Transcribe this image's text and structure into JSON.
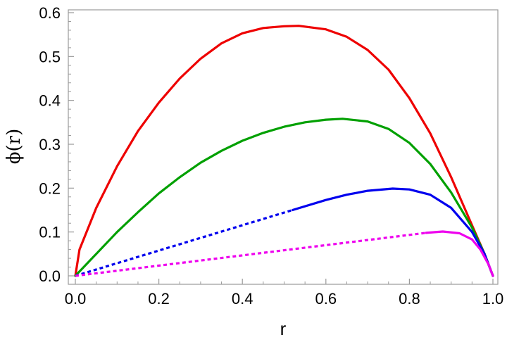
{
  "chart_data": {
    "type": "line",
    "title": "",
    "xlabel": "r",
    "ylabel": "ϕ(r)",
    "xlim": [
      0.0,
      1.0
    ],
    "ylim": [
      0.0,
      0.6
    ],
    "xticks": [
      "0.0",
      "0.2",
      "0.4",
      "0.6",
      "0.8",
      "1.0"
    ],
    "yticks": [
      "0.0",
      "0.1",
      "0.2",
      "0.3",
      "0.4",
      "0.5",
      "0.6"
    ],
    "grid": false,
    "legend": "none",
    "series": [
      {
        "color": "#ee0000",
        "style": "solid",
        "points": [
          [
            0.0,
            0.0
          ],
          [
            0.01,
            0.06
          ],
          [
            0.05,
            0.155
          ],
          [
            0.1,
            0.25
          ],
          [
            0.15,
            0.33
          ],
          [
            0.2,
            0.395
          ],
          [
            0.25,
            0.45
          ],
          [
            0.3,
            0.495
          ],
          [
            0.35,
            0.53
          ],
          [
            0.4,
            0.553
          ],
          [
            0.45,
            0.565
          ],
          [
            0.5,
            0.569
          ],
          [
            0.535,
            0.57
          ],
          [
            0.6,
            0.562
          ],
          [
            0.65,
            0.545
          ],
          [
            0.7,
            0.515
          ],
          [
            0.75,
            0.47
          ],
          [
            0.8,
            0.405
          ],
          [
            0.85,
            0.325
          ],
          [
            0.9,
            0.225
          ],
          [
            0.95,
            0.115
          ],
          [
            0.98,
            0.05
          ],
          [
            1.0,
            0.0
          ]
        ]
      },
      {
        "color": "#00a000",
        "style": "solid",
        "points": [
          [
            0.0,
            0.0
          ],
          [
            0.05,
            0.05
          ],
          [
            0.1,
            0.1
          ],
          [
            0.15,
            0.145
          ],
          [
            0.2,
            0.188
          ],
          [
            0.25,
            0.225
          ],
          [
            0.3,
            0.258
          ],
          [
            0.35,
            0.285
          ],
          [
            0.4,
            0.308
          ],
          [
            0.45,
            0.326
          ],
          [
            0.5,
            0.34
          ],
          [
            0.55,
            0.35
          ],
          [
            0.6,
            0.356
          ],
          [
            0.64,
            0.358
          ],
          [
            0.7,
            0.352
          ],
          [
            0.75,
            0.335
          ],
          [
            0.8,
            0.303
          ],
          [
            0.85,
            0.255
          ],
          [
            0.9,
            0.19
          ],
          [
            0.95,
            0.11
          ],
          [
            0.98,
            0.05
          ],
          [
            1.0,
            0.0
          ]
        ]
      },
      {
        "color": "#0000ee",
        "style": "dotted",
        "points": [
          [
            0.0,
            0.0
          ],
          [
            0.52,
            0.15
          ]
        ]
      },
      {
        "color": "#0000ee",
        "style": "solid",
        "points": [
          [
            0.52,
            0.15
          ],
          [
            0.6,
            0.173
          ],
          [
            0.65,
            0.185
          ],
          [
            0.7,
            0.194
          ],
          [
            0.76,
            0.199
          ],
          [
            0.8,
            0.197
          ],
          [
            0.85,
            0.185
          ],
          [
            0.9,
            0.155
          ],
          [
            0.95,
            0.1
          ],
          [
            0.98,
            0.05
          ],
          [
            1.0,
            0.0
          ]
        ]
      },
      {
        "color": "#ee00ee",
        "style": "dotted",
        "points": [
          [
            0.0,
            0.0
          ],
          [
            0.84,
            0.098
          ]
        ]
      },
      {
        "color": "#ee00ee",
        "style": "solid",
        "points": [
          [
            0.84,
            0.098
          ],
          [
            0.88,
            0.101
          ],
          [
            0.92,
            0.097
          ],
          [
            0.95,
            0.083
          ],
          [
            0.97,
            0.06
          ],
          [
            0.99,
            0.025
          ],
          [
            1.0,
            0.0
          ]
        ]
      }
    ]
  }
}
